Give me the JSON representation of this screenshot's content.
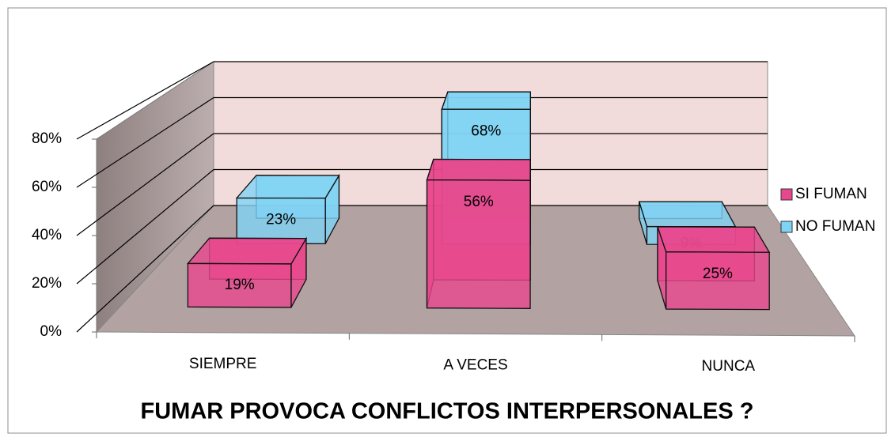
{
  "chart_data": {
    "type": "bar3d",
    "title": "FUMAR PROVOCA CONFLICTOS INTERPERSONALES ?",
    "categories": [
      "SIEMPRE",
      "A VECES",
      "NUNCA"
    ],
    "series": [
      {
        "name": "SI FUMAN",
        "color": "#e8478d",
        "values": [
          19,
          56,
          25
        ],
        "value_labels": [
          "19%",
          "56%",
          "25%"
        ]
      },
      {
        "name": "NO FUMAN",
        "color": "#7fd3f5",
        "values": [
          23,
          68,
          9
        ],
        "value_labels": [
          "23%",
          "68%",
          "9%"
        ]
      }
    ],
    "ylim": [
      0,
      80
    ],
    "yticks": [
      {
        "value": 0,
        "label": "0%"
      },
      {
        "value": 20,
        "label": "20%"
      },
      {
        "value": 40,
        "label": "40%"
      },
      {
        "value": 60,
        "label": "60%"
      },
      {
        "value": 80,
        "label": "80%"
      }
    ],
    "grid": true,
    "legend": "right"
  }
}
